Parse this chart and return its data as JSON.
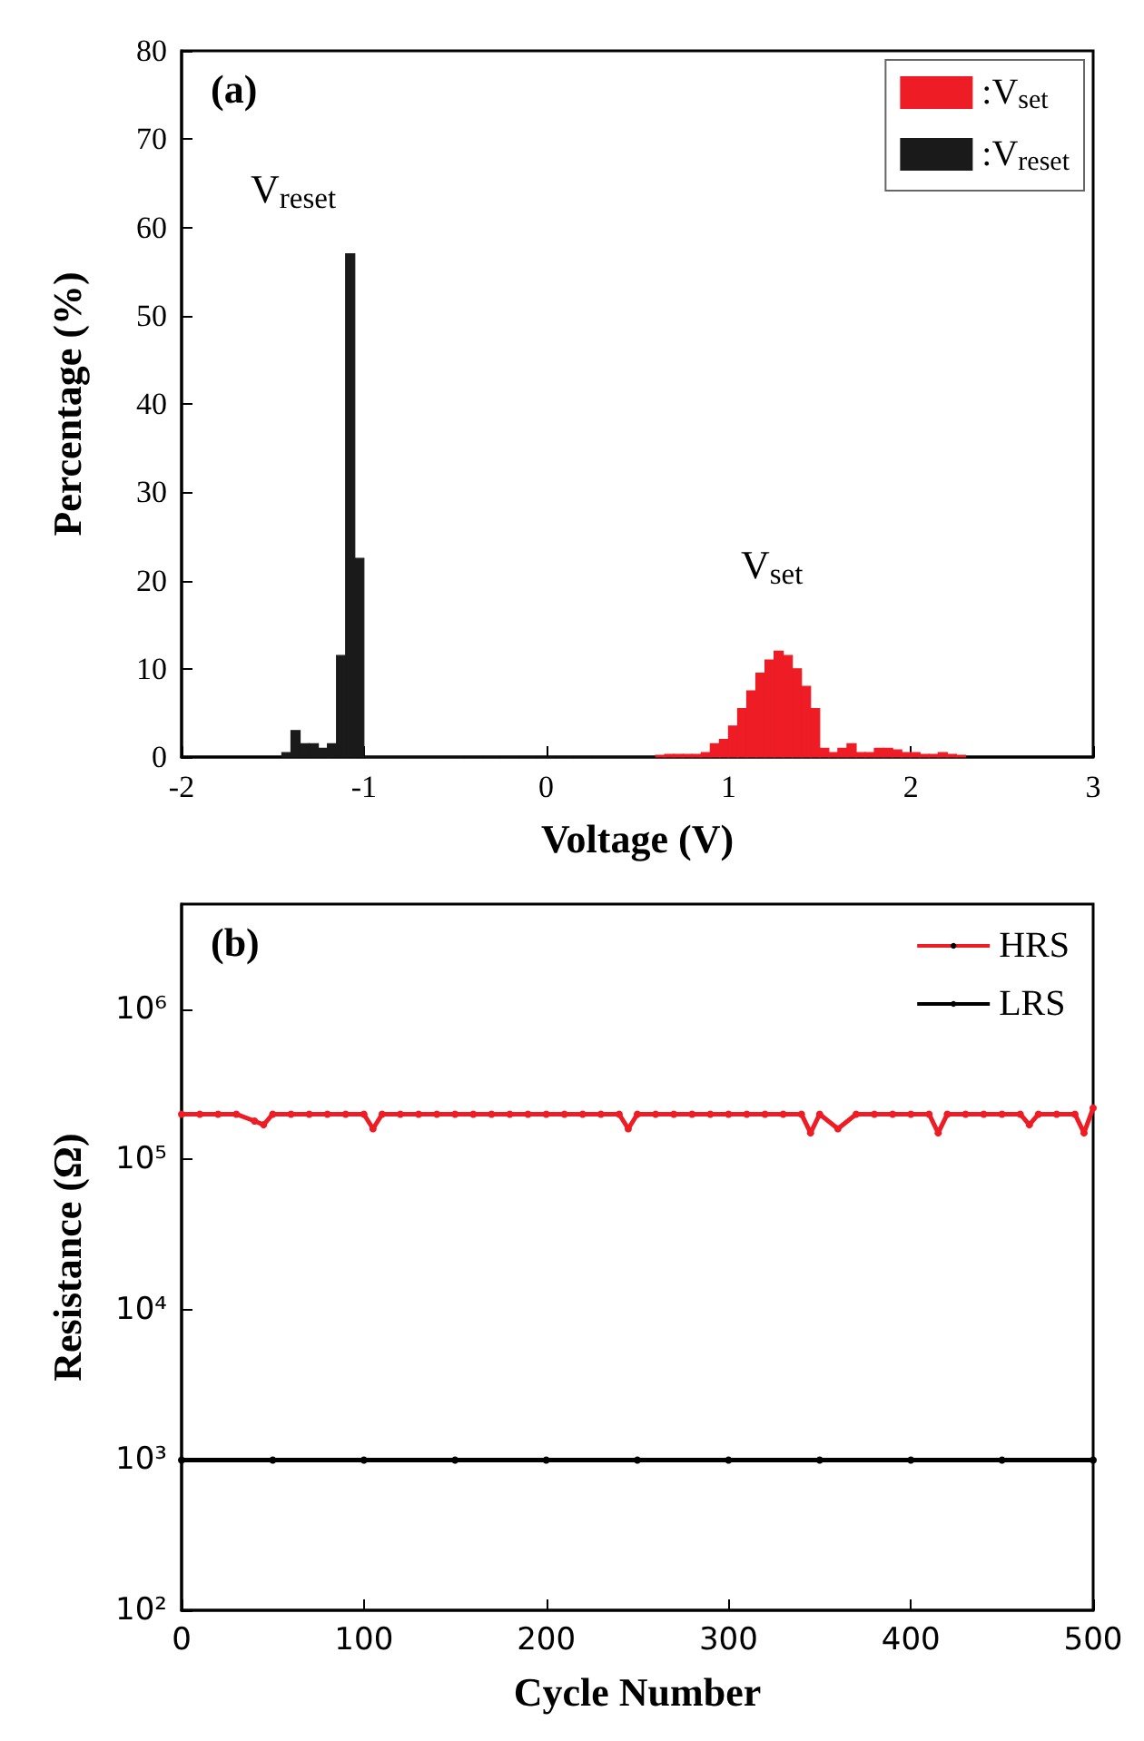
{
  "chart_data": [
    {
      "type": "histogram",
      "xlabel": "Voltage (V)",
      "ylabel": "Percentage (%)",
      "xlim": [
        -2,
        3
      ],
      "xticks": [
        -2,
        -1,
        0,
        1,
        2,
        3
      ],
      "ylim": [
        0,
        80
      ],
      "yticks": [
        0,
        10,
        20,
        30,
        40,
        50,
        60,
        70,
        80
      ],
      "legend": "top right",
      "annotations": [
        "(a)",
        "V$_{reset}$",
        "V$_{set}$"
      ],
      "bins": [
        -1.45,
        -1.4,
        -1.35,
        -1.3,
        -1.25,
        -1.2,
        -1.15,
        -1.1,
        -1.05,
        -1.0,
        -0.95,
        -0.9,
        -0.85,
        -0.8,
        -0.75,
        -0.7,
        -0.65,
        -0.6,
        -0.55,
        -0.5,
        -0.45,
        -0.4,
        -0.35,
        -0.3,
        -0.25,
        -0.2,
        -0.15,
        -0.1,
        -0.05,
        0,
        0.05,
        0.1,
        0.15,
        0.2,
        0.25,
        0.3,
        0.35,
        0.4,
        0.45,
        0.5,
        0.55,
        0.6,
        0.65,
        0.7,
        0.75,
        0.8,
        0.85,
        0.9,
        0.95,
        1.0,
        1.05,
        1.1,
        1.15,
        1.2,
        1.25,
        1.3,
        1.35,
        1.4,
        1.45,
        1.5,
        1.55,
        1.6,
        1.65,
        1.7,
        1.75,
        1.8,
        1.85,
        1.9,
        1.95,
        2.0,
        2.05,
        2.1,
        2.15,
        2.2,
        2.25,
        2.3
      ],
      "series": [
        {
          "name": ":V$_{set}$",
          "color": "#ee1c25",
          "values": [
            null,
            null,
            null,
            null,
            null,
            null,
            null,
            null,
            null,
            null,
            null,
            null,
            null,
            null,
            null,
            null,
            null,
            null,
            null,
            null,
            null,
            null,
            null,
            null,
            null,
            null,
            null,
            null,
            null,
            null,
            null,
            null,
            null,
            null,
            null,
            null,
            null,
            null,
            null,
            null,
            null,
            0.2,
            0.3,
            0.3,
            0.3,
            0.3,
            0.5,
            1.5,
            2,
            3.5,
            5.5,
            7.5,
            9.5,
            11,
            12,
            11.5,
            10,
            8,
            5.5,
            1,
            0.5,
            1,
            1.5,
            0.5,
            0.5,
            1,
            1,
            0.8,
            0.5,
            0.5,
            0.3,
            0.3,
            0.5,
            0.3,
            0.2
          ]
        },
        {
          "name": ":V$_{reset}$",
          "color": "#1a1a1a",
          "values": [
            0.5,
            3,
            1.5,
            1.5,
            1,
            1.5,
            11.5,
            57,
            22.5,
            0,
            0,
            0,
            0,
            0,
            0,
            0,
            0,
            0,
            0,
            0,
            0,
            0,
            0,
            0,
            0,
            0,
            0,
            0,
            0,
            0,
            0,
            0,
            0,
            0,
            0,
            0,
            0,
            0,
            0,
            0,
            0,
            null,
            null,
            null,
            null,
            null,
            null,
            null,
            null,
            null,
            null,
            null,
            null,
            null,
            null,
            null,
            null,
            null,
            null,
            null,
            null,
            null,
            null,
            null,
            null,
            null,
            null,
            null,
            null,
            null,
            null,
            null,
            null,
            null,
            null
          ]
        }
      ]
    },
    {
      "type": "line",
      "xlabel": "Cycle Number",
      "ylabel": "Resistance (Ω)",
      "log": "y",
      "marker": "circle",
      "legend": "top right",
      "xlim": [
        0,
        500
      ],
      "xticks": [
        0,
        100,
        200,
        300,
        400,
        500
      ],
      "ylim": [
        100,
        5000000
      ],
      "yticks": [
        {
          "value": 100,
          "label": "10²"
        },
        {
          "value": 1000,
          "label": "10³"
        },
        {
          "value": 10000,
          "label": "10⁴"
        },
        {
          "value": 100000,
          "label": "10⁵"
        },
        {
          "value": 1000000,
          "label": "10⁶"
        }
      ],
      "annotations": [
        "(b)"
      ],
      "series": [
        {
          "name": "HRS",
          "color": "#ee1c25",
          "x": [
            0,
            10,
            20,
            30,
            40,
            45,
            50,
            60,
            70,
            80,
            90,
            100,
            105,
            110,
            120,
            130,
            140,
            150,
            160,
            170,
            180,
            190,
            200,
            210,
            220,
            230,
            240,
            245,
            250,
            260,
            270,
            280,
            290,
            300,
            310,
            320,
            330,
            340,
            345,
            350,
            360,
            370,
            380,
            390,
            400,
            410,
            415,
            420,
            430,
            440,
            450,
            460,
            465,
            470,
            480,
            490,
            495,
            500
          ],
          "values": [
            200000,
            200000,
            200000,
            200000,
            180000,
            170000,
            200000,
            200000,
            200000,
            200000,
            200000,
            200000,
            160000,
            200000,
            200000,
            200000,
            200000,
            200000,
            200000,
            200000,
            200000,
            200000,
            200000,
            200000,
            200000,
            200000,
            200000,
            160000,
            200000,
            200000,
            200000,
            200000,
            200000,
            200000,
            200000,
            200000,
            200000,
            200000,
            150000,
            200000,
            160000,
            200000,
            200000,
            200000,
            200000,
            200000,
            150000,
            200000,
            200000,
            200000,
            200000,
            200000,
            170000,
            200000,
            200000,
            200000,
            150000,
            220000
          ]
        },
        {
          "name": "LRS",
          "color": "#000000",
          "x": [
            0,
            50,
            100,
            150,
            200,
            250,
            300,
            350,
            400,
            450,
            500
          ],
          "values": [
            1000,
            1000,
            1000,
            1000,
            1000,
            1000,
            1000,
            1000,
            1000,
            1000,
            1000
          ]
        }
      ]
    }
  ]
}
